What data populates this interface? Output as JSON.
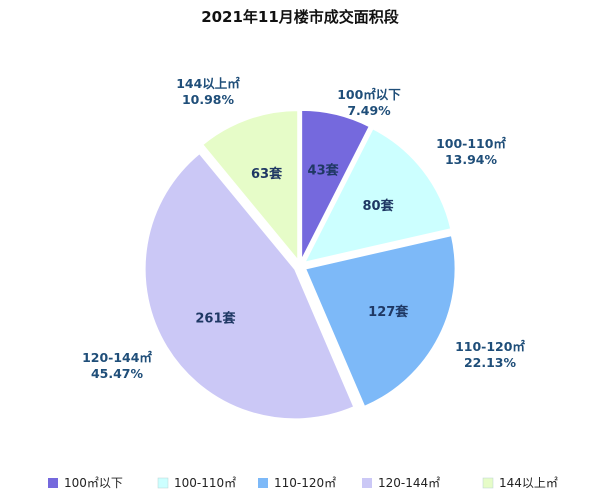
{
  "chart_data": {
    "type": "pie",
    "title": "2021年11月楼市成交面积段",
    "categories": [
      "100㎡以下",
      "100-110㎡",
      "110-120㎡",
      "120-144㎡",
      "144以上㎡"
    ],
    "values": [
      43,
      80,
      127,
      261,
      63
    ],
    "value_labels": [
      "43套",
      "80套",
      "127套",
      "261套",
      "63套"
    ],
    "outer_labels": [
      {
        "name": "100㎡以下",
        "percent": "7.49%"
      },
      {
        "name": "100-110㎡",
        "percent": "13.94%"
      },
      {
        "name": "110-120㎡",
        "percent": "22.13%"
      },
      {
        "name": "120-144㎡",
        "percent": "45.47%"
      },
      {
        "name": "144以上㎡",
        "percent": "10.98%"
      }
    ],
    "colors": [
      "#7569dd",
      "#ccffff",
      "#7db9f8",
      "#cbc8f6",
      "#e6fcc8"
    ],
    "legend": {
      "placement": "bottom",
      "labels": [
        "100㎡以下",
        "100-110㎡",
        "110-120㎡",
        "120-144㎡",
        "144以上㎡"
      ]
    }
  }
}
